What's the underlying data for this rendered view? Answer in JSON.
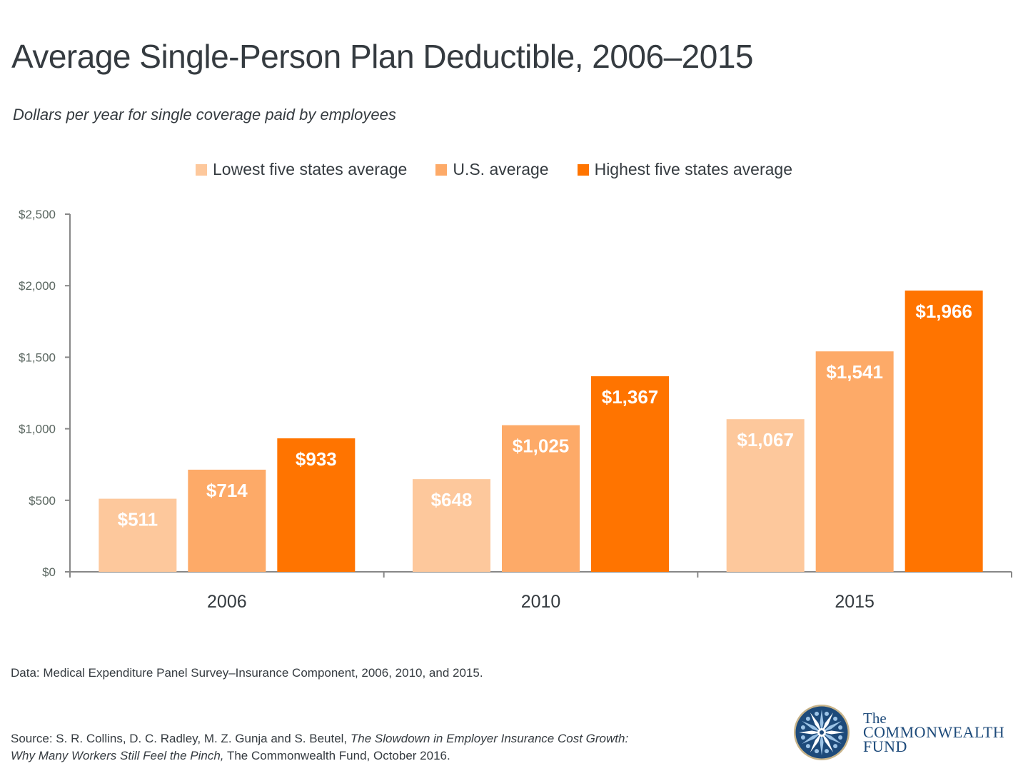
{
  "title": "Average Single-Person Plan Deductible, 2006–2015",
  "subtitle": "Dollars per year for single coverage paid by employees",
  "chart_data": {
    "type": "bar",
    "title": "Average Single-Person Plan Deductible, 2006–2015",
    "subtitle": "Dollars per year for single coverage paid by employees",
    "xlabel": "",
    "ylabel": "",
    "categories": [
      "2006",
      "2010",
      "2015"
    ],
    "series": [
      {
        "name": "Lowest five states average",
        "color": "#fdc89c",
        "values": [
          511,
          648,
          1067
        ],
        "labels": [
          "$511",
          "$648",
          "$1,067"
        ]
      },
      {
        "name": "U.S. average",
        "color": "#fdaa68",
        "values": [
          714,
          1025,
          1541
        ],
        "labels": [
          "$714",
          "$1,025",
          "$1,541"
        ]
      },
      {
        "name": "Highest five states average",
        "color": "#ff7400",
        "values": [
          933,
          1367,
          1966
        ],
        "labels": [
          "$933",
          "$1,367",
          "$1,966"
        ]
      }
    ],
    "ylim": [
      0,
      2500
    ],
    "yticks": [
      0,
      500,
      1000,
      1500,
      2000,
      2500
    ],
    "ytick_labels": [
      "$0",
      "$500",
      "$1,000",
      "$1,500",
      "$2,000",
      "$2,500"
    ],
    "grid": false,
    "legend_position": "top-center"
  },
  "footer": {
    "data_note": "Data: Medical Expenditure Panel Survey–Insurance Component, 2006, 2010, and 2015.",
    "source_prefix": "Source: S. R. Collins, D. C. Radley, M. Z. Gunja and S. Beutel, ",
    "source_title": "The Slowdown in Employer Insurance Cost Growth: Why Many Workers Still Feel the Pinch,",
    "source_suffix": " The Commonwealth Fund, October 2016."
  },
  "logo": {
    "line1": "The",
    "line2": "COMMONWEALTH",
    "line3": "FUND",
    "icon": "commonwealth-fund-emblem-icon",
    "color": "#1d4a7a"
  }
}
